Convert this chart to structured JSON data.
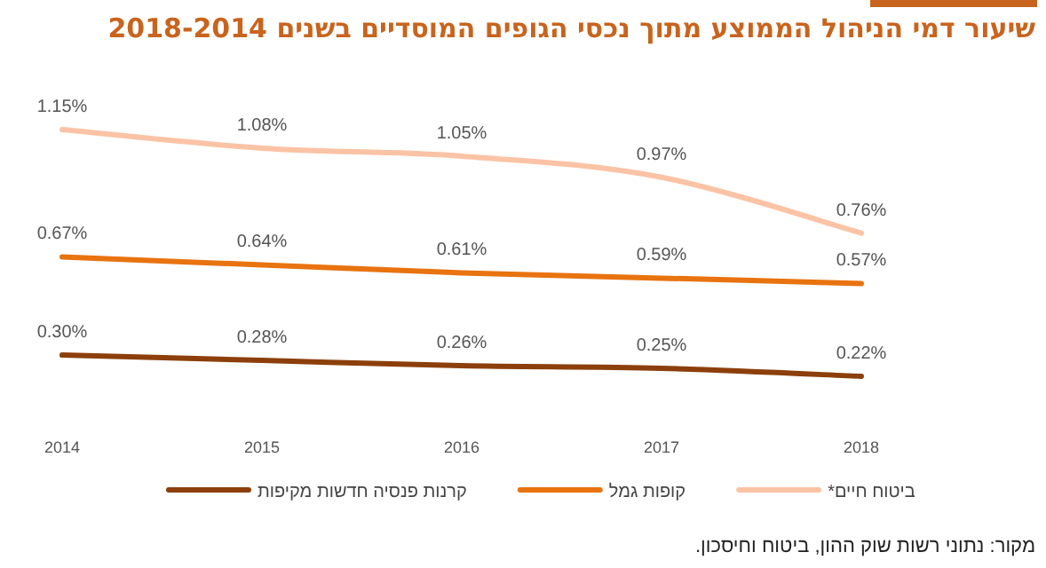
{
  "chart_data": {
    "type": "line",
    "title": "שיעור דמי הניהול הממוצע מתוך נכסי הגופים המוסדיים בשנים 2018-2014",
    "categories": [
      "2014",
      "2015",
      "2016",
      "2017",
      "2018"
    ],
    "series": [
      {
        "name": "קרנות פנסיה חדשות מקיפות",
        "color": "#8c3f0b",
        "values": [
          0.3,
          0.28,
          0.26,
          0.25,
          0.22
        ],
        "value_labels": [
          "0.30%",
          "0.28%",
          "0.26%",
          "0.25%",
          "0.22%"
        ]
      },
      {
        "name": "קופות גמל",
        "color": "#e8730f",
        "values": [
          0.67,
          0.64,
          0.61,
          0.59,
          0.57
        ],
        "value_labels": [
          "0.67%",
          "0.64%",
          "0.61%",
          "0.59%",
          "0.57%"
        ]
      },
      {
        "name": "ביטוח חיים*",
        "color": "#fbc3a5",
        "values": [
          1.15,
          1.08,
          1.05,
          0.97,
          0.76
        ],
        "value_labels": [
          "1.15%",
          "1.08%",
          "1.05%",
          "0.97%",
          "0.76%"
        ]
      }
    ],
    "grid": false,
    "legend": "bottom",
    "marker": "none",
    "line_style": "solid",
    "annotations": [
      "מקור: נתוני רשות שוק ההון, ביטוח וחיסכון."
    ]
  }
}
